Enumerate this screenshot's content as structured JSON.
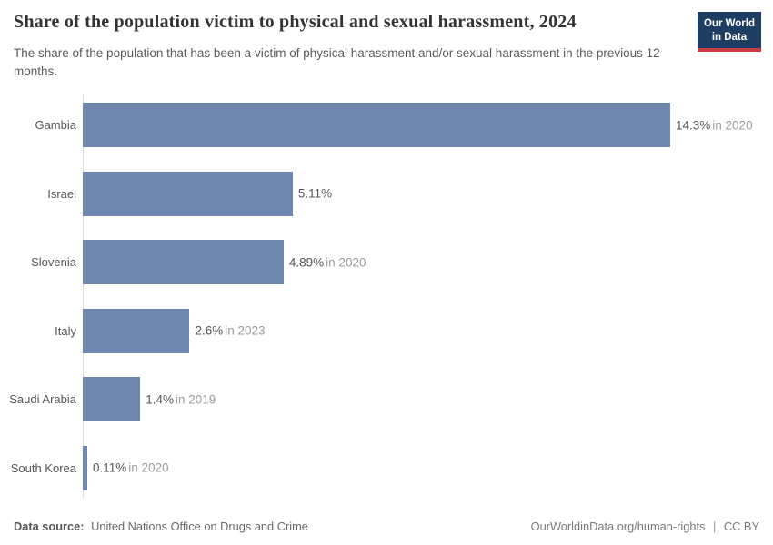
{
  "chart_data": {
    "type": "bar",
    "orientation": "horizontal",
    "title": "Share of the population victim to physical and sexual harassment, 2024",
    "subtitle": "The share of the population that has been a victim of physical harassment and/or sexual harassment in the previous 12 months.",
    "categories": [
      "Gambia",
      "Israel",
      "Slovenia",
      "Italy",
      "Saudi Arabia",
      "South Korea"
    ],
    "values": [
      14.3,
      5.11,
      4.89,
      2.6,
      1.4,
      0.11
    ],
    "value_labels": [
      "14.3%",
      "5.11%",
      "4.89%",
      "2.6%",
      "1.4%",
      "0.11%"
    ],
    "year_labels": [
      "in 2020",
      "",
      "in 2020",
      "in 2023",
      "in 2019",
      "in 2020"
    ],
    "unit": "%",
    "xlim": [
      0,
      14.3
    ],
    "bar_color": "#6d87ae",
    "axis_line_color": "#dcdcdc",
    "grid": "off",
    "legend": "none"
  },
  "logo": {
    "line1": "Our World",
    "line2": "in Data",
    "bg_color": "#1d3d63",
    "accent_color": "#cf3b44"
  },
  "footer": {
    "source_label": "Data source:",
    "source_value": "United Nations Office on Drugs and Crime",
    "url": "OurWorldinData.org/human-rights",
    "divider": "|",
    "license": "CC BY"
  }
}
